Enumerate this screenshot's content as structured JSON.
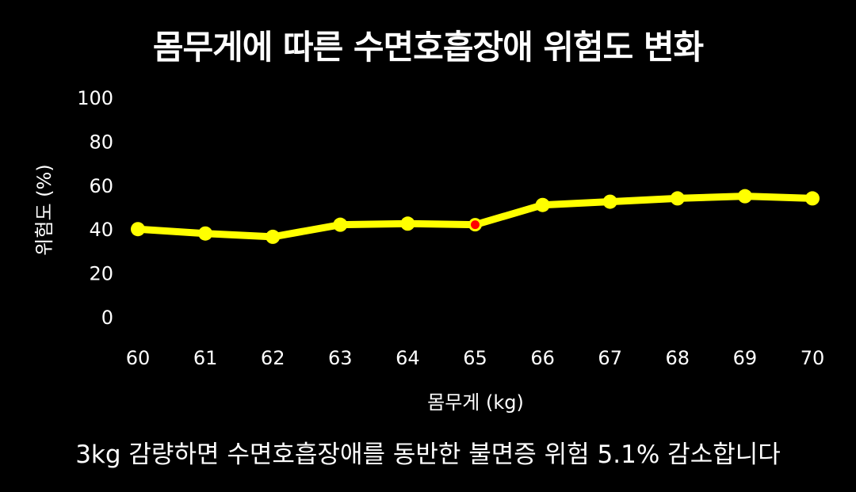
{
  "chart_data": {
    "type": "line",
    "title": "몸무게에 따른 수면호흡장애 위험도 변화",
    "xlabel": "몸무게 (kg)",
    "ylabel": "위험도 (%)",
    "x": [
      60,
      61,
      62,
      63,
      64,
      65,
      66,
      67,
      68,
      69,
      70
    ],
    "y_ticks": [
      0,
      20,
      40,
      60,
      80,
      100
    ],
    "ylim": [
      0,
      100
    ],
    "series": [
      {
        "values": [
          40,
          38,
          36.5,
          42,
          42.5,
          42,
          51,
          52.5,
          54,
          55,
          54
        ],
        "color": "#ffff00"
      }
    ],
    "highlight": {
      "x": 65,
      "color": "#ff0000"
    },
    "grid": false,
    "background": "#000000"
  },
  "caption": "3kg 감량하면 수면호흡장애를 동반한 불면증 위험 5.1% 감소합니다"
}
